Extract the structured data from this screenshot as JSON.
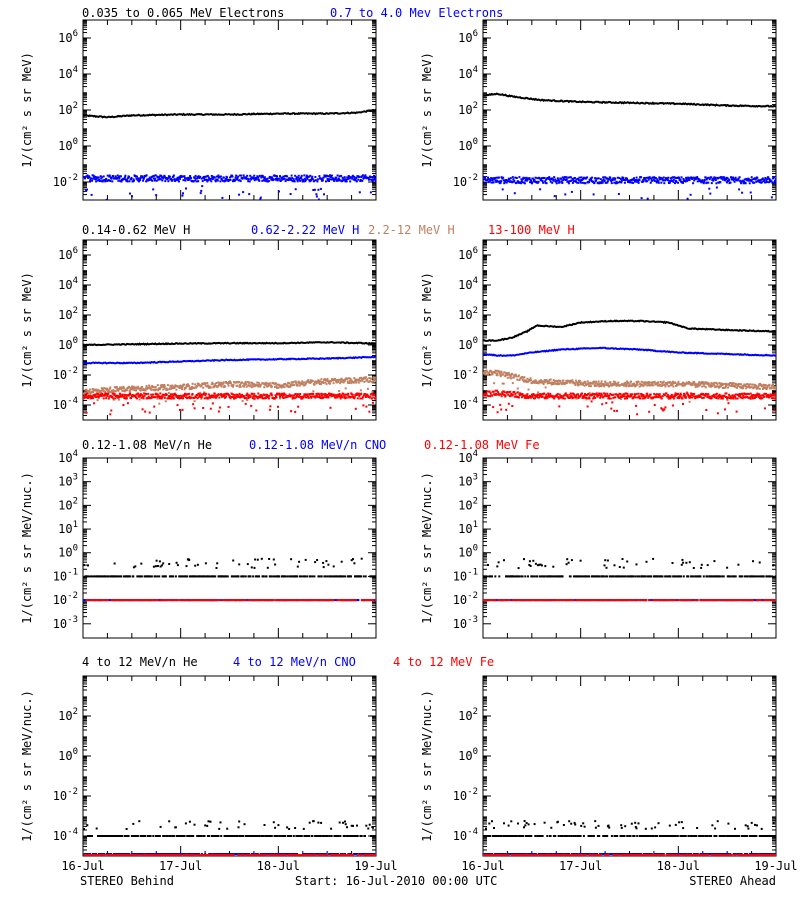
{
  "colors": {
    "black": "#000000",
    "blue": "#0000ff",
    "tan": "#c08060",
    "red": "#ff0000"
  },
  "footer": {
    "left": "STEREO Behind",
    "center": "Start: 16-Jul-2010 00:00 UTC",
    "right": "STEREO Ahead"
  },
  "x_tick_labels": [
    "16-Jul",
    "17-Jul",
    "18-Jul",
    "19-Jul"
  ],
  "chart_data": [
    {
      "type": "scatter",
      "row": "electrons",
      "spacecraft": "STEREO Behind",
      "ylabel": "1/(cm² s sr MeV)",
      "yscale": "log",
      "ylim_exp": [
        -3,
        7
      ],
      "ytick_exponents": [
        -2,
        0,
        2,
        4,
        6
      ],
      "xlim_days": [
        0,
        3
      ],
      "series": [
        {
          "name": "0.035 to 0.065 MeV Electrons",
          "color": "#000000",
          "style": "line",
          "x": [
            0,
            0.25,
            0.5,
            1.0,
            1.5,
            2.0,
            2.5,
            2.8,
            3.0
          ],
          "y_exp": [
            1.7,
            1.6,
            1.7,
            1.75,
            1.75,
            1.8,
            1.8,
            1.85,
            2.0
          ]
        },
        {
          "name": "0.7 to 4.0 Mev Electrons",
          "color": "#0000ff",
          "style": "noisy",
          "x": [
            0,
            3
          ],
          "y_exp": [
            -1.8,
            -1.8
          ]
        }
      ]
    },
    {
      "type": "scatter",
      "row": "electrons",
      "spacecraft": "STEREO Ahead",
      "ylabel": "1/(cm² s sr MeV)",
      "yscale": "log",
      "ylim_exp": [
        -3,
        7
      ],
      "ytick_exponents": [
        -2,
        0,
        2,
        4,
        6
      ],
      "xlim_days": [
        0,
        3
      ],
      "series": [
        {
          "name": "0.035 to 0.065 MeV Electrons",
          "color": "#000000",
          "style": "line",
          "x": [
            0,
            0.15,
            0.3,
            0.6,
            1.0,
            1.5,
            2.0,
            2.5,
            3.0
          ],
          "y_exp": [
            2.8,
            2.9,
            2.75,
            2.55,
            2.45,
            2.4,
            2.35,
            2.25,
            2.2
          ]
        },
        {
          "name": "0.7 to 4.0 Mev Electrons",
          "color": "#0000ff",
          "style": "noisy",
          "x": [
            0,
            3
          ],
          "y_exp": [
            -1.9,
            -1.9
          ]
        }
      ]
    },
    {
      "type": "scatter",
      "row": "protons",
      "spacecraft": "STEREO Behind",
      "ylabel": "1/(cm² s sr MeV)",
      "yscale": "log",
      "ylim_exp": [
        -5,
        7
      ],
      "ytick_exponents": [
        -4,
        -2,
        0,
        2,
        4,
        6
      ],
      "xlim_days": [
        0,
        3
      ],
      "series": [
        {
          "name": "0.14-0.62 MeV H",
          "color": "#000000",
          "style": "line",
          "x": [
            0,
            0.5,
            1.0,
            1.5,
            2.0,
            2.5,
            3.0
          ],
          "y_exp": [
            0.0,
            0.05,
            0.1,
            0.12,
            0.12,
            0.18,
            0.1
          ]
        },
        {
          "name": "0.62-2.22 MeV H",
          "color": "#0000ff",
          "style": "line",
          "x": [
            0,
            0.5,
            1.0,
            1.5,
            2.0,
            2.5,
            3.0
          ],
          "y_exp": [
            -1.2,
            -1.2,
            -1.1,
            -1.0,
            -0.95,
            -0.9,
            -0.8
          ]
        },
        {
          "name": "2.2-12 MeV H",
          "color": "#c08060",
          "style": "noisy",
          "x": [
            0,
            0.5,
            1.0,
            1.5,
            2.0,
            2.3,
            2.6,
            3.0
          ],
          "y_exp": [
            -3.1,
            -2.9,
            -2.8,
            -2.6,
            -2.7,
            -2.5,
            -2.4,
            -2.3
          ]
        },
        {
          "name": "13-100 MeV H",
          "color": "#ff0000",
          "style": "noisy",
          "x": [
            0,
            3
          ],
          "y_exp": [
            -3.4,
            -3.4
          ]
        }
      ]
    },
    {
      "type": "scatter",
      "row": "protons",
      "spacecraft": "STEREO Ahead",
      "ylabel": "1/(cm² s sr MeV)",
      "yscale": "log",
      "ylim_exp": [
        -5,
        7
      ],
      "ytick_exponents": [
        -4,
        -2,
        0,
        2,
        4,
        6
      ],
      "xlim_days": [
        0,
        3
      ],
      "series": [
        {
          "name": "0.14-0.62 MeV H",
          "color": "#000000",
          "style": "line",
          "x": [
            0,
            0.15,
            0.3,
            0.45,
            0.55,
            0.8,
            1.0,
            1.3,
            1.6,
            1.9,
            2.1,
            2.5,
            3.0
          ],
          "y_exp": [
            0.3,
            0.3,
            0.5,
            0.9,
            1.3,
            1.2,
            1.5,
            1.6,
            1.6,
            1.5,
            1.1,
            1.0,
            0.9
          ]
        },
        {
          "name": "0.62-2.22 MeV H",
          "color": "#0000ff",
          "style": "line",
          "x": [
            0,
            0.15,
            0.3,
            0.5,
            0.8,
            1.2,
            1.6,
            2.0,
            2.5,
            3.0
          ],
          "y_exp": [
            -0.6,
            -0.7,
            -0.7,
            -0.5,
            -0.3,
            -0.2,
            -0.3,
            -0.5,
            -0.6,
            -0.7
          ]
        },
        {
          "name": "2.2-12 MeV H",
          "color": "#c08060",
          "style": "noisy",
          "x": [
            0,
            0.1,
            0.3,
            0.5,
            0.8,
            1.2,
            1.5,
            2.0,
            2.5,
            3.0
          ],
          "y_exp": [
            -1.9,
            -1.8,
            -2.1,
            -2.4,
            -2.5,
            -2.6,
            -2.6,
            -2.6,
            -2.7,
            -2.8
          ]
        },
        {
          "name": "13-100 MeV H",
          "color": "#ff0000",
          "style": "noisy",
          "x": [
            0,
            0.1,
            0.5,
            3.0
          ],
          "y_exp": [
            -3.3,
            -3.2,
            -3.4,
            -3.4
          ]
        }
      ]
    },
    {
      "type": "scatter",
      "row": "heavy-ions-low",
      "spacecraft": "STEREO Behind",
      "ylabel": "1/(cm² s sr MeV/nuc.)",
      "yscale": "log",
      "ylim_exp": [
        -3.6,
        4
      ],
      "ytick_exponents": [
        -3,
        -2,
        -1,
        0,
        1,
        2,
        3,
        4
      ],
      "xlim_days": [
        0,
        3
      ],
      "series": [
        {
          "name": "0.12-1.08 MeV/n He",
          "color": "#000000",
          "style": "sparse",
          "x": [
            0,
            3
          ],
          "y_exp": [
            -1.0,
            -1.0
          ]
        },
        {
          "name": "0.12-1.08 MeV/n CNO",
          "color": "#0000ff",
          "style": "sparse",
          "x": [
            0,
            3
          ],
          "y_exp": [
            -2.0,
            -2.0
          ]
        },
        {
          "name": "0.12-1.08 MeV Fe",
          "color": "#ff0000",
          "style": "sparse",
          "x": [
            0,
            3
          ],
          "y_exp": [
            -2.0,
            -2.0
          ]
        }
      ]
    },
    {
      "type": "scatter",
      "row": "heavy-ions-low",
      "spacecraft": "STEREO Ahead",
      "ylabel": "1/(cm² s sr MeV/nuc.)",
      "yscale": "log",
      "ylim_exp": [
        -3.6,
        4
      ],
      "ytick_exponents": [
        -3,
        -2,
        -1,
        0,
        1,
        2,
        3,
        4
      ],
      "xlim_days": [
        0,
        3
      ],
      "series": [
        {
          "name": "0.12-1.08 MeV/n He",
          "color": "#000000",
          "style": "sparse",
          "x": [
            0,
            3
          ],
          "y_exp": [
            -1.0,
            -1.0
          ]
        },
        {
          "name": "0.12-1.08 MeV/n CNO",
          "color": "#0000ff",
          "style": "sparse",
          "x": [
            0,
            3
          ],
          "y_exp": [
            -2.0,
            -2.0
          ]
        },
        {
          "name": "0.12-1.08 MeV Fe",
          "color": "#ff0000",
          "style": "sparse",
          "x": [
            0,
            3
          ],
          "y_exp": [
            -2.0,
            -2.0
          ]
        }
      ]
    },
    {
      "type": "scatter",
      "row": "heavy-ions-high",
      "spacecraft": "STEREO Behind",
      "ylabel": "1/(cm² s sr MeV/nuc.)",
      "yscale": "log",
      "ylim_exp": [
        -5,
        4
      ],
      "ytick_exponents": [
        -4,
        -2,
        0,
        2
      ],
      "xlim_days": [
        0,
        3
      ],
      "series": [
        {
          "name": "4 to 12 MeV/n He",
          "color": "#000000",
          "style": "sparse",
          "x": [
            0,
            3
          ],
          "y_exp": [
            -4.0,
            -4.0
          ]
        },
        {
          "name": "4 to 12 MeV/n CNO",
          "color": "#0000ff",
          "style": "sparse",
          "x": [
            0,
            3
          ],
          "y_exp": [
            -4.9,
            -4.9
          ]
        },
        {
          "name": "4 to 12 MeV Fe",
          "color": "#ff0000",
          "style": "sparse",
          "x": [
            0,
            3
          ],
          "y_exp": [
            -4.95,
            -4.95
          ]
        }
      ]
    },
    {
      "type": "scatter",
      "row": "heavy-ions-high",
      "spacecraft": "STEREO Ahead",
      "ylabel": "1/(cm² s sr MeV/nuc.)",
      "yscale": "log",
      "ylim_exp": [
        -5,
        4
      ],
      "ytick_exponents": [
        -4,
        -2,
        0,
        2
      ],
      "xlim_days": [
        0,
        3
      ],
      "series": [
        {
          "name": "4 to 12 MeV/n He",
          "color": "#000000",
          "style": "sparse",
          "x": [
            0,
            3
          ],
          "y_exp": [
            -4.0,
            -4.0
          ]
        },
        {
          "name": "4 to 12 MeV/n CNO",
          "color": "#0000ff",
          "style": "sparse",
          "x": [
            0,
            3
          ],
          "y_exp": [
            -4.9,
            -4.9
          ]
        },
        {
          "name": "4 to 12 MeV Fe",
          "color": "#ff0000",
          "style": "sparse",
          "x": [
            0,
            3
          ],
          "y_exp": [
            -4.95,
            -4.95
          ]
        }
      ]
    }
  ]
}
